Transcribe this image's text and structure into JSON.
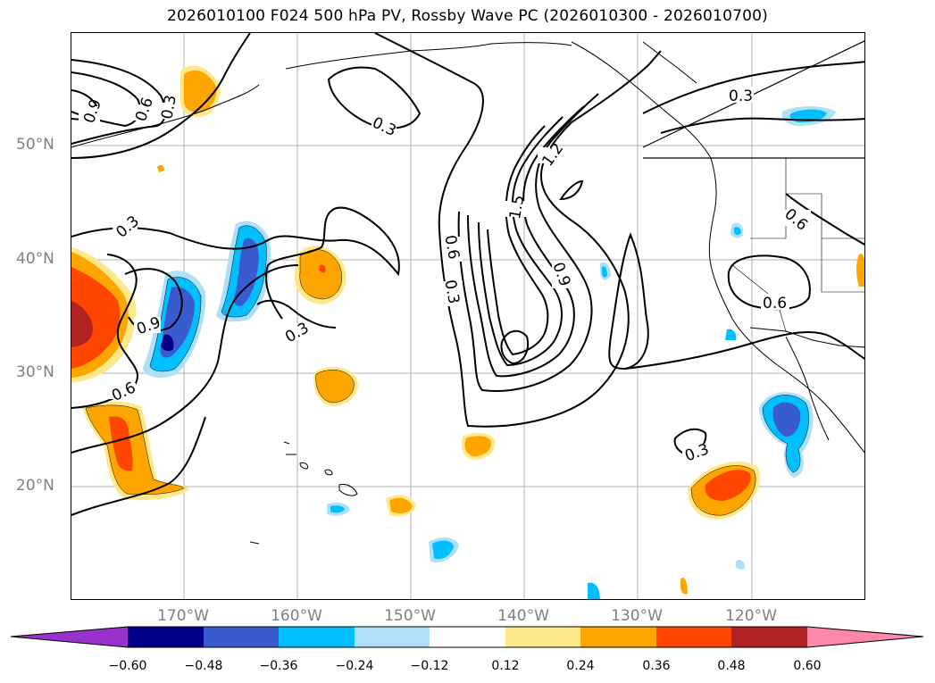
{
  "title": "2026010100 F024 500 hPa PV, Rossby Wave PC (2026010300 - 2026010700)",
  "lat_labels": [
    "50°N",
    "40°N",
    "30°N",
    "20°N"
  ],
  "lon_labels": [
    "170°W",
    "160°W",
    "150°W",
    "140°W",
    "130°W",
    "120°W"
  ],
  "contour_labels": [
    "0.9",
    "0.6",
    "0.3",
    "0.3",
    "0.3",
    "0.9",
    "0.6",
    "0.3",
    "1.2",
    "1.5",
    "0.6",
    "0.3",
    "0.9",
    "0.3",
    "0.6",
    "0.6",
    "0.3"
  ],
  "colorbar": {
    "ticks": [
      "−0.60",
      "−0.48",
      "−0.36",
      "−0.24",
      "−0.12",
      "0.12",
      "0.24",
      "0.36",
      "0.48",
      "0.60"
    ],
    "colors": [
      "#9932cc",
      "#00008b",
      "#3a5bd0",
      "#00bfff",
      "#aee0f8",
      "#ffffff",
      "#ffe88a",
      "#ffa500",
      "#ff4500",
      "#b22222",
      "#ff88aa"
    ]
  },
  "colors": {
    "orange": "#ffa500",
    "red_orange": "#ff4500",
    "dark_red": "#b22222",
    "light_yellow": "#ffe88a",
    "deep_sky_blue": "#00bfff",
    "royal_blue": "#3a5bd0",
    "navy": "#00008b",
    "light_blue": "#aee0f8",
    "grid": "#b0b0b0"
  }
}
